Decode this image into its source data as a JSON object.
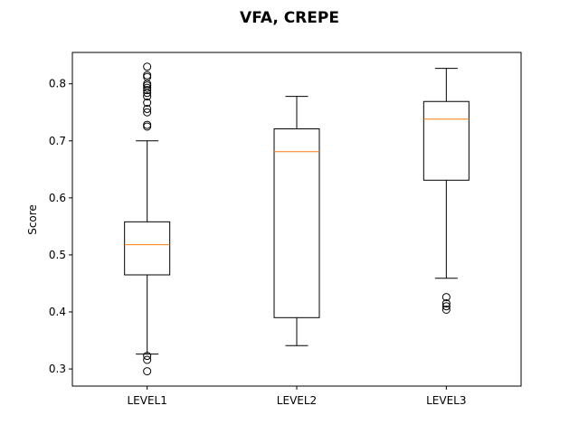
{
  "chart_data": {
    "type": "box",
    "title": "VFA, CREPE",
    "xlabel": "",
    "ylabel": "Score",
    "ylim": [
      0.27,
      0.855
    ],
    "yticks": [
      0.3,
      0.4,
      0.5,
      0.6,
      0.7,
      0.8
    ],
    "ytick_labels": [
      "0.3",
      "0.4",
      "0.5",
      "0.6",
      "0.7",
      "0.8"
    ],
    "categories": [
      "LEVEL1",
      "LEVEL2",
      "LEVEL3"
    ],
    "boxes": [
      {
        "category": "LEVEL1",
        "whisker_low": 0.326,
        "q1": 0.465,
        "median": 0.518,
        "q3": 0.558,
        "whisker_high": 0.7,
        "outliers": [
          0.83,
          0.815,
          0.812,
          0.8,
          0.797,
          0.793,
          0.789,
          0.784,
          0.778,
          0.767,
          0.756,
          0.75,
          0.728,
          0.725,
          0.323,
          0.316,
          0.296
        ]
      },
      {
        "category": "LEVEL2",
        "whisker_low": 0.341,
        "q1": 0.39,
        "median": 0.681,
        "q3": 0.721,
        "whisker_high": 0.778,
        "outliers": []
      },
      {
        "category": "LEVEL3",
        "whisker_low": 0.459,
        "q1": 0.631,
        "median": 0.738,
        "q3": 0.769,
        "whisker_high": 0.827,
        "outliers": [
          0.426,
          0.415,
          0.41,
          0.404
        ]
      }
    ],
    "colors": {
      "box": "#000000",
      "median": "#ff7f0e",
      "whisker": "#000000",
      "outlier": "#000000"
    },
    "grid": false
  }
}
